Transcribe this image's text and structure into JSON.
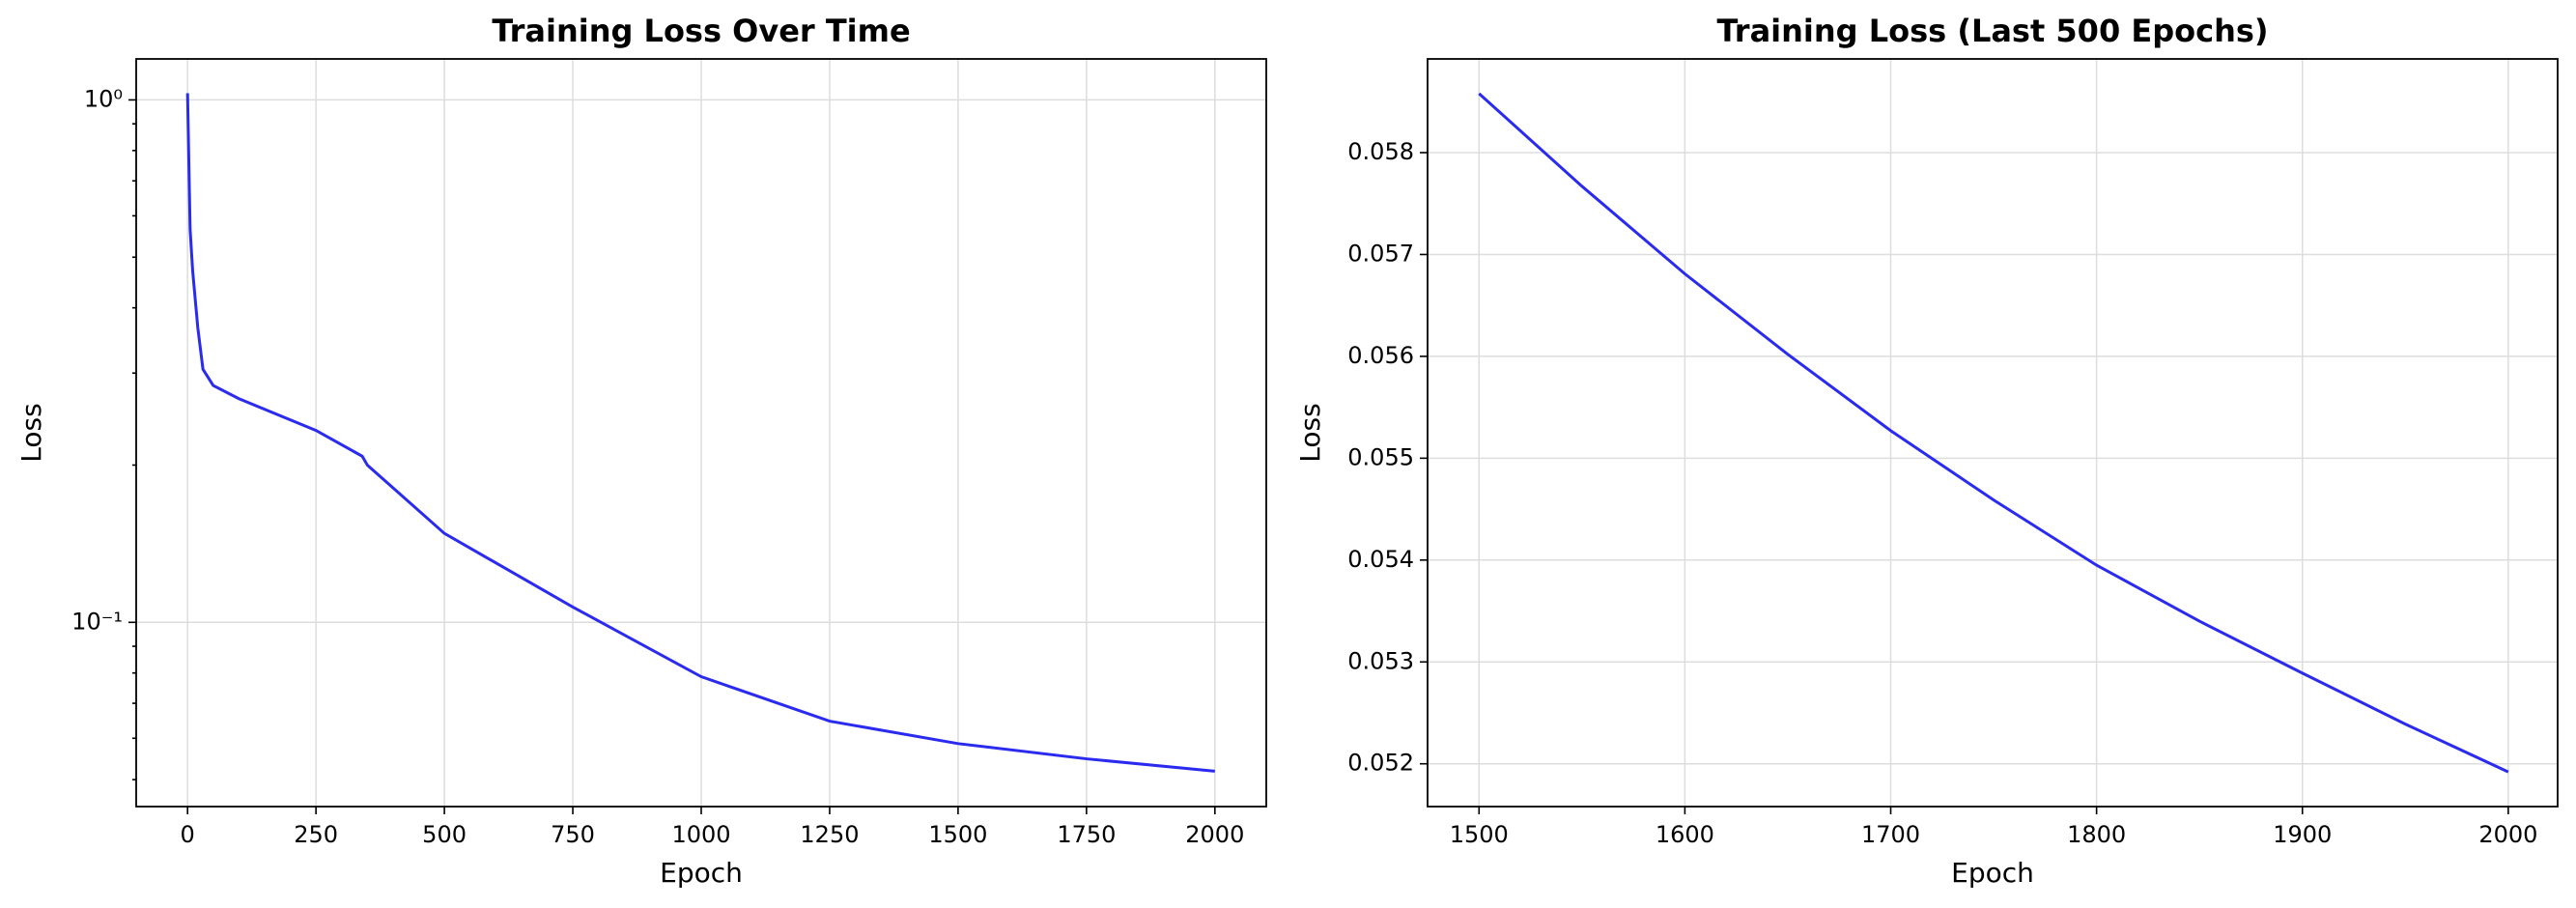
{
  "chart_data": [
    {
      "type": "line",
      "title": "Training Loss Over Time",
      "xlabel": "Epoch",
      "ylabel": "Loss",
      "x": [
        0,
        5,
        10,
        20,
        30,
        50,
        100,
        250,
        340,
        350,
        500,
        750,
        1000,
        1250,
        1500,
        1750,
        2000
      ],
      "series": [
        {
          "color": "#2b2bf0",
          "values": [
            1.03,
            0.565,
            0.47,
            0.366,
            0.305,
            0.284,
            0.268,
            0.233,
            0.208,
            0.2,
            0.148,
            0.107,
            0.0787,
            0.0647,
            0.0586,
            0.0548,
            0.0519
          ]
        }
      ],
      "xlim": [
        -100,
        2100
      ],
      "xticks": [
        0,
        250,
        500,
        750,
        1000,
        1250,
        1500,
        1750,
        2000
      ],
      "ylim": [
        0.0444,
        1.198
      ],
      "log_y": true,
      "yticks": [
        {
          "value": 1,
          "label": "10⁰"
        },
        {
          "value": 0.1,
          "label": "10⁻¹"
        }
      ],
      "yminorticks": [
        0.05,
        0.06,
        0.07,
        0.08,
        0.09,
        0.2,
        0.3,
        0.4,
        0.5,
        0.6,
        0.7,
        0.8,
        0.9
      ],
      "grid": true
    },
    {
      "type": "line",
      "title": "Training Loss (Last 500 Epochs)",
      "xlabel": "Epoch",
      "ylabel": "Loss",
      "x": [
        1500,
        1550,
        1600,
        1650,
        1700,
        1750,
        1800,
        1850,
        1900,
        1950,
        2000
      ],
      "series": [
        {
          "color": "#2b2bf0",
          "values": [
            0.05858,
            0.05767,
            0.05681,
            0.05602,
            0.05527,
            0.05459,
            0.05395,
            0.0534,
            0.05289,
            0.05239,
            0.05192
          ]
        }
      ],
      "xlim": [
        1475,
        2024
      ],
      "xticks": [
        1500,
        1600,
        1700,
        1800,
        1900,
        2000
      ],
      "ylim": [
        0.05158,
        0.05892
      ],
      "yticks": [
        0.052,
        0.053,
        0.054,
        0.055,
        0.056,
        0.057,
        0.058
      ],
      "grid": true
    }
  ]
}
